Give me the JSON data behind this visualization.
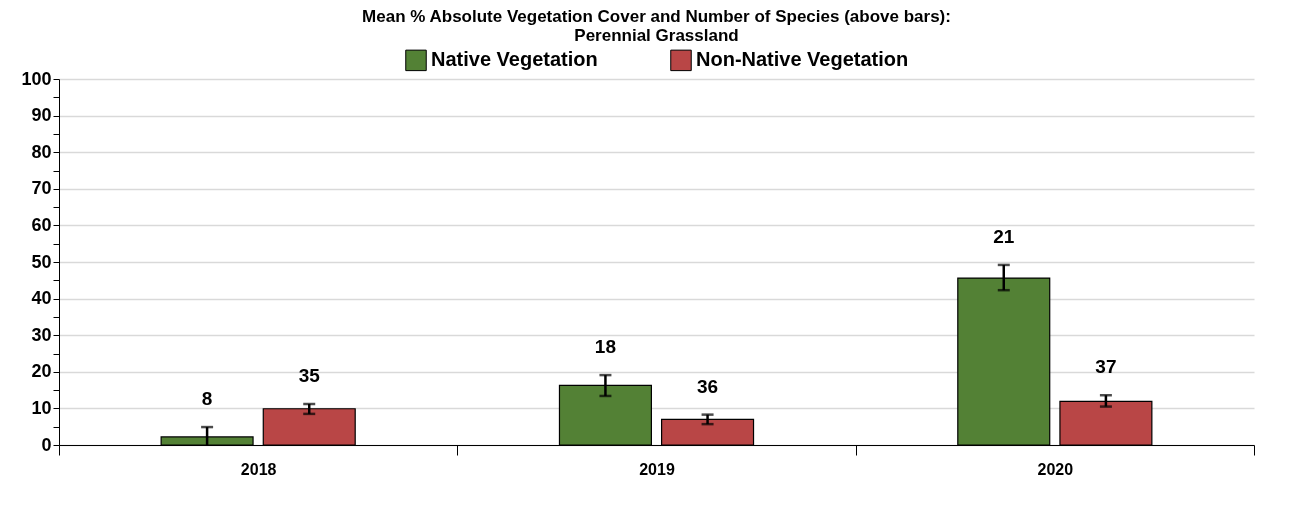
{
  "chart_data": {
    "type": "bar",
    "title": "Mean % Absolute Vegetation Cover and Number of Species (above bars):\nPerennial Grassland",
    "categories": [
      "2018",
      "2019",
      "2020"
    ],
    "series": [
      {
        "name": "Native Vegetation",
        "color": "#538135",
        "values": [
          2.2,
          16.3,
          45.6
        ],
        "errors": [
          [
            0,
            4.9
          ],
          [
            13.4,
            19.1
          ],
          [
            42.3,
            49.2
          ]
        ]
      },
      {
        "name": "Non-Native Vegetation",
        "color": "#b94646",
        "values": [
          9.9,
          7.0,
          11.9
        ],
        "errors": [
          [
            8.5,
            11.2
          ],
          [
            5.7,
            8.3
          ],
          [
            10.5,
            13.6
          ]
        ]
      }
    ],
    "annotations": [
      "8",
      "35",
      "18",
      "36",
      "21",
      "37"
    ],
    "ylim": [
      0,
      100
    ],
    "yticks": [
      0,
      {
        "value": 5,
        "label": null
      },
      10,
      {
        "value": 15,
        "label": null
      },
      20,
      {
        "value": 25,
        "label": null
      },
      30,
      {
        "value": 35,
        "label": null
      },
      40,
      {
        "value": 45,
        "label": null
      },
      50,
      {
        "value": 55,
        "label": null
      },
      60,
      {
        "value": 65,
        "label": null
      },
      70,
      {
        "value": 75,
        "label": null
      },
      80,
      {
        "value": 85,
        "label": null
      },
      90,
      {
        "value": 95,
        "label": null
      },
      100
    ],
    "grid": "y",
    "legend": "top"
  }
}
